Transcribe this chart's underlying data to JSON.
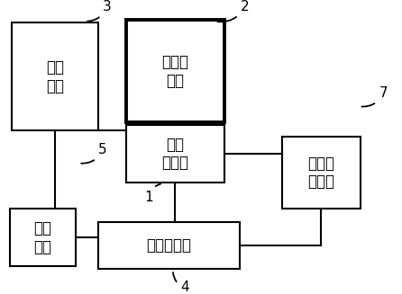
{
  "bg_color": "#ffffff",
  "box_params": {
    "aux_battery": [
      0.135,
      0.76,
      0.215,
      0.4
    ],
    "main_battery": [
      0.435,
      0.78,
      0.245,
      0.38
    ],
    "bms": [
      0.435,
      0.475,
      0.245,
      0.215
    ],
    "controller": [
      0.42,
      0.135,
      0.355,
      0.175
    ],
    "smart_switch": [
      0.105,
      0.165,
      0.165,
      0.215
    ],
    "dc_power": [
      0.8,
      0.405,
      0.195,
      0.265
    ]
  },
  "labels_map": {
    "aux_battery": "辅助\n电池",
    "main_battery": "主动力\n电池",
    "bms": "电池\n管理器",
    "controller": "综合控制器",
    "smart_switch": "智能\n开关",
    "dc_power": "直流电\n源模块"
  },
  "bold_boxes": [
    "main_battery"
  ],
  "annotation_params": [
    [
      "1",
      [
        0.405,
        0.365
      ],
      [
        0.37,
        0.315
      ]
    ],
    [
      "2",
      [
        0.535,
        0.965
      ],
      [
        0.61,
        1.02
      ]
    ],
    [
      "3",
      [
        0.21,
        0.965
      ],
      [
        0.265,
        1.02
      ]
    ],
    [
      "4",
      [
        0.43,
        0.045
      ],
      [
        0.46,
        -0.02
      ]
    ],
    [
      "5",
      [
        0.195,
        0.44
      ],
      [
        0.255,
        0.49
      ]
    ],
    [
      "7",
      [
        0.895,
        0.65
      ],
      [
        0.955,
        0.7
      ]
    ]
  ]
}
